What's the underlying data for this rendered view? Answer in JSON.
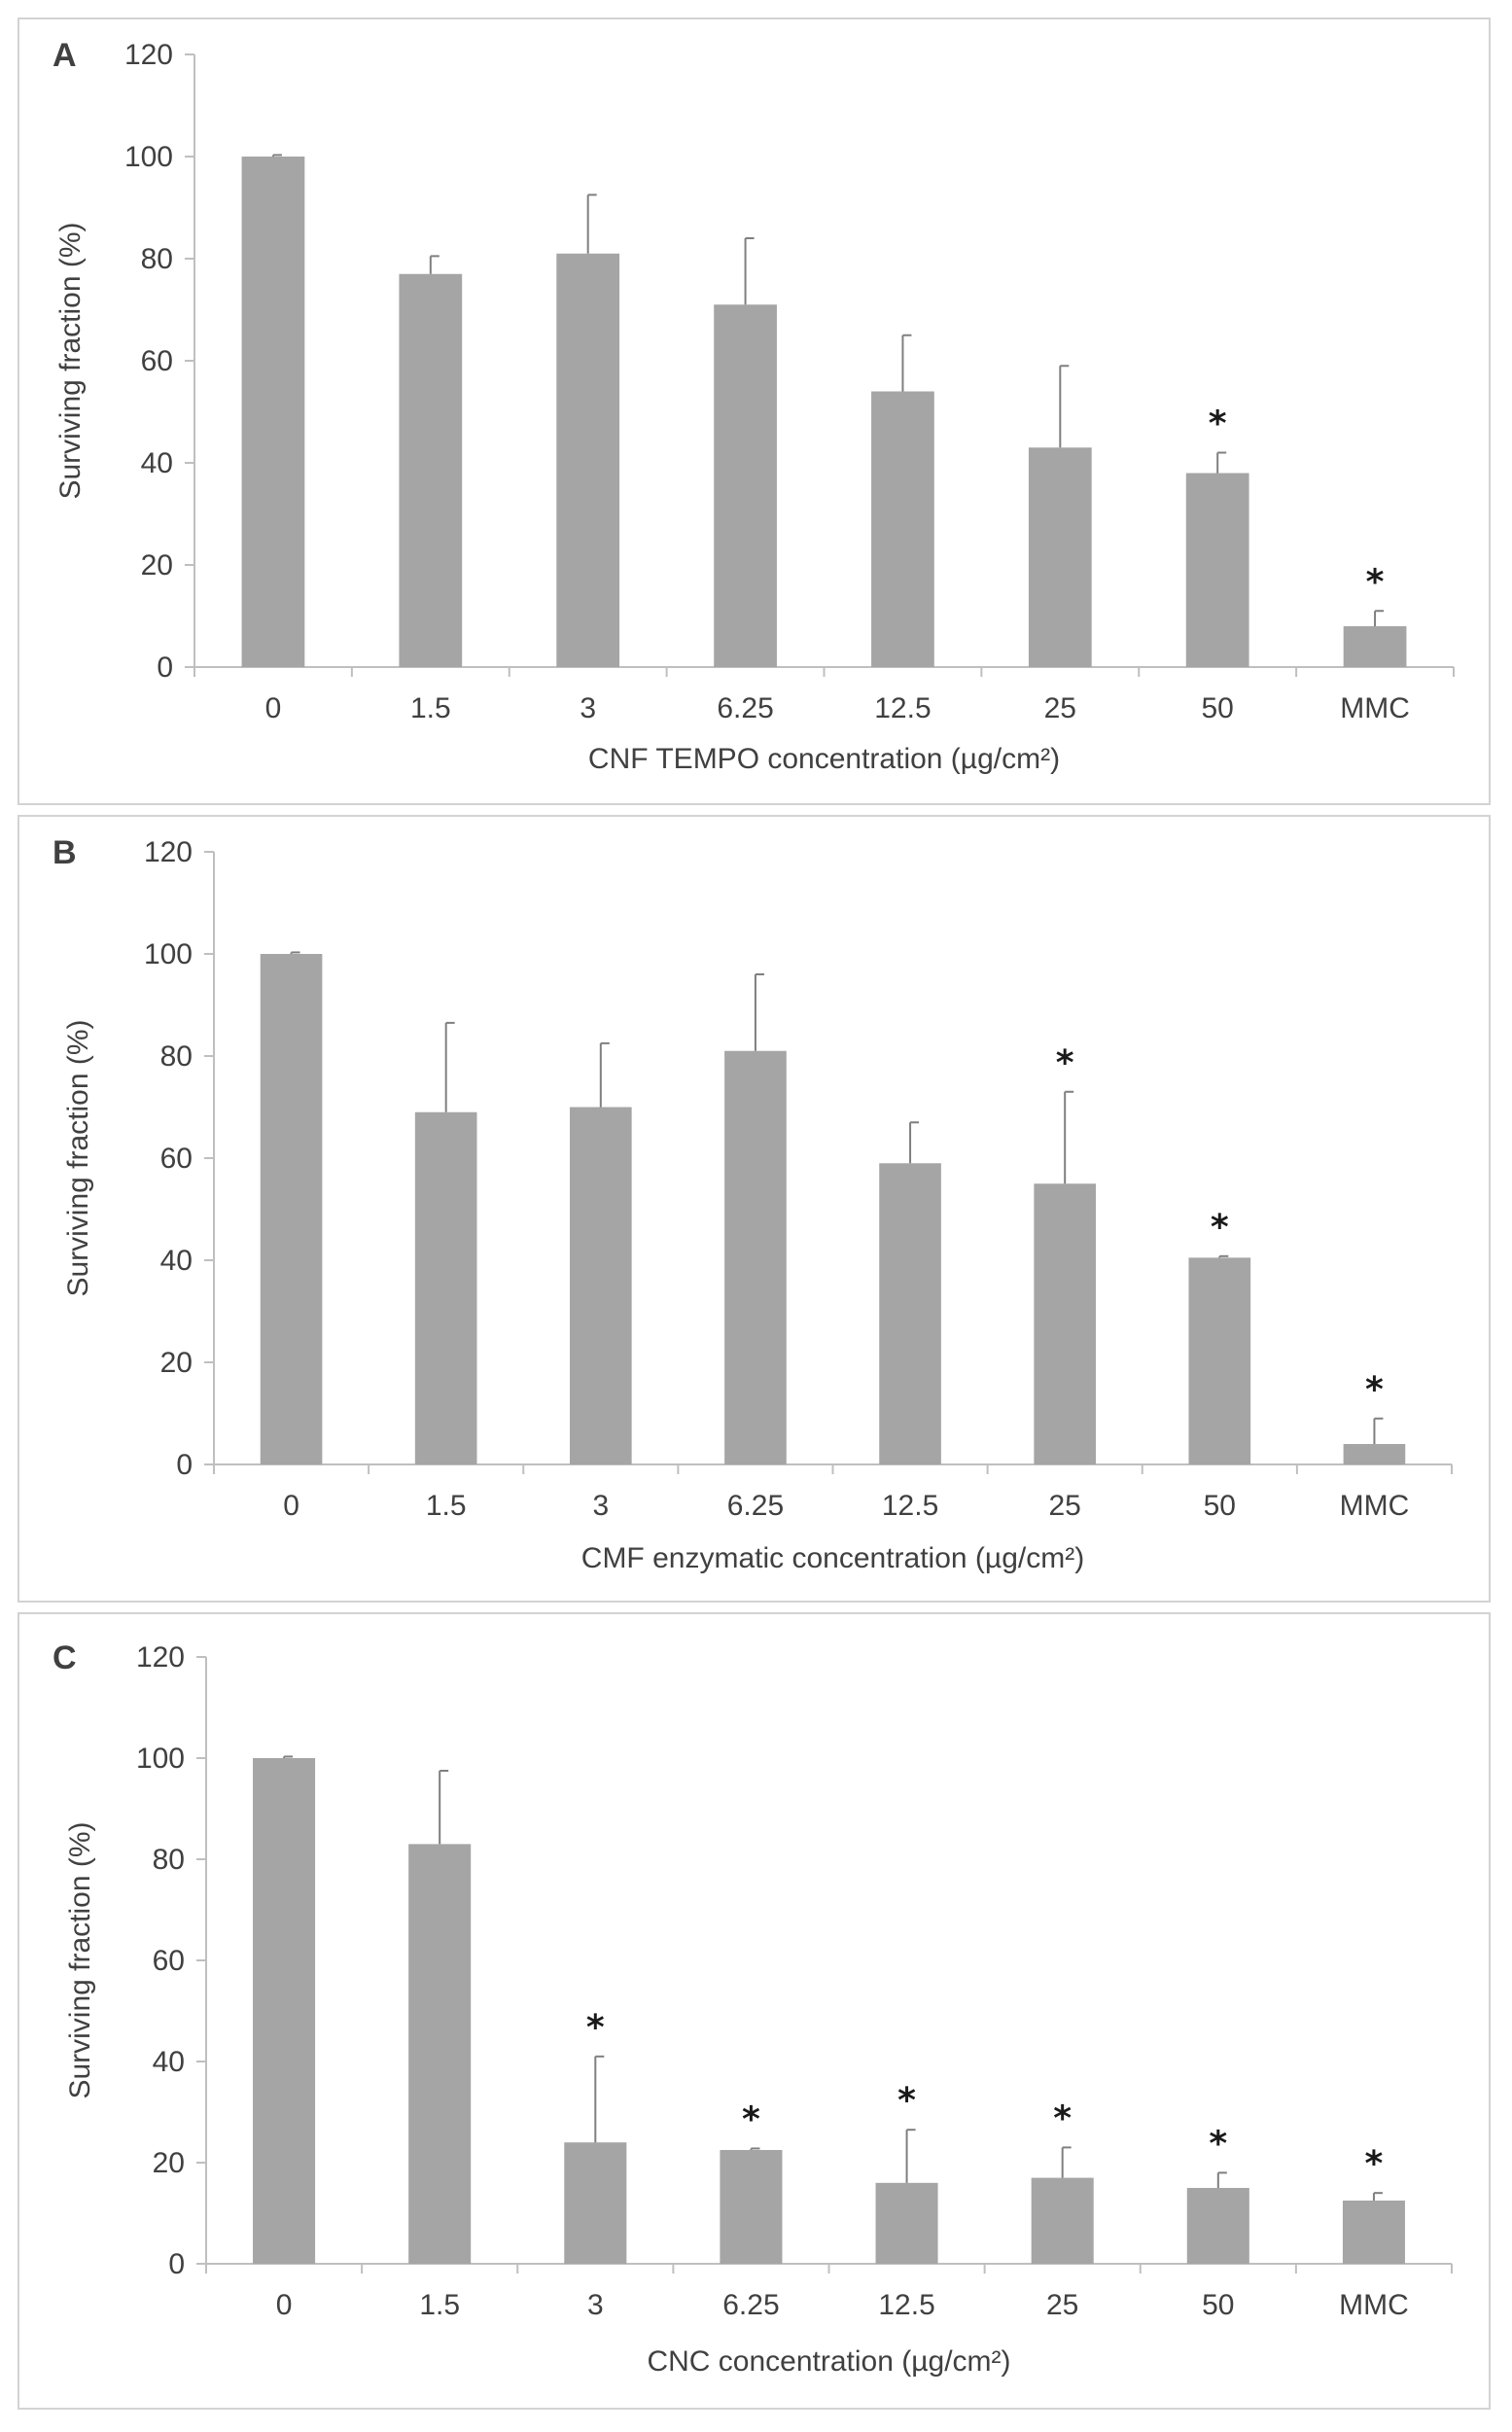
{
  "colors": {
    "bar": "#a5a5a5",
    "axis": "#bfbfbf",
    "error": "#7f7f7f",
    "text": "#404040",
    "border": "#d3d3d3"
  },
  "chart_data": [
    {
      "type": "bar",
      "panel_label": "A",
      "categories": [
        "0",
        "1.5",
        "3",
        "6.25",
        "12.5",
        "25",
        "50",
        "MMC"
      ],
      "values": [
        100,
        77,
        81,
        71,
        54,
        43,
        38,
        8
      ],
      "errors": [
        0.3,
        3.5,
        11.5,
        13,
        11,
        16,
        4,
        3
      ],
      "significant": [
        "",
        "",
        "",
        "",
        "",
        "",
        "*",
        "*"
      ],
      "xlabel": "CNF TEMPO concentration (µg/cm²)",
      "ylabel": "Surviving fraction (%)",
      "y_ticks": [
        "0",
        "20",
        "40",
        "60",
        "80",
        "100",
        "120"
      ],
      "ylim": [
        0,
        120
      ]
    },
    {
      "type": "bar",
      "panel_label": "B",
      "categories": [
        "0",
        "1.5",
        "3",
        "6.25",
        "12.5",
        "25",
        "50",
        "MMC"
      ],
      "values": [
        100,
        69,
        70,
        81,
        59,
        55,
        40.5,
        4
      ],
      "errors": [
        0.3,
        17.5,
        12.5,
        15,
        8,
        18,
        0.3,
        5
      ],
      "significant": [
        "",
        "",
        "",
        "",
        "",
        "*",
        "*",
        "*"
      ],
      "xlabel": "CMF enzymatic concentration (µg/cm²)",
      "ylabel": "Surviving fraction (%)",
      "y_ticks": [
        "0",
        "20",
        "40",
        "60",
        "80",
        "100",
        "120"
      ],
      "ylim": [
        0,
        120
      ]
    },
    {
      "type": "bar",
      "panel_label": "C",
      "categories": [
        "0",
        "1.5",
        "3",
        "6.25",
        "12.5",
        "25",
        "50",
        "MMC"
      ],
      "values": [
        100,
        83,
        24,
        22.5,
        16,
        17,
        15,
        12.5
      ],
      "errors": [
        0.3,
        14.5,
        17,
        0.3,
        10.5,
        6,
        3,
        1.5
      ],
      "significant": [
        "",
        "",
        "*",
        "*",
        "*",
        "*",
        "*",
        "*"
      ],
      "xlabel": "CNC concentration (µg/cm²)",
      "ylabel": "Surviving fraction (%)",
      "y_ticks": [
        "0",
        "20",
        "40",
        "60",
        "80",
        "100",
        "120"
      ],
      "ylim": [
        0,
        120
      ]
    }
  ]
}
